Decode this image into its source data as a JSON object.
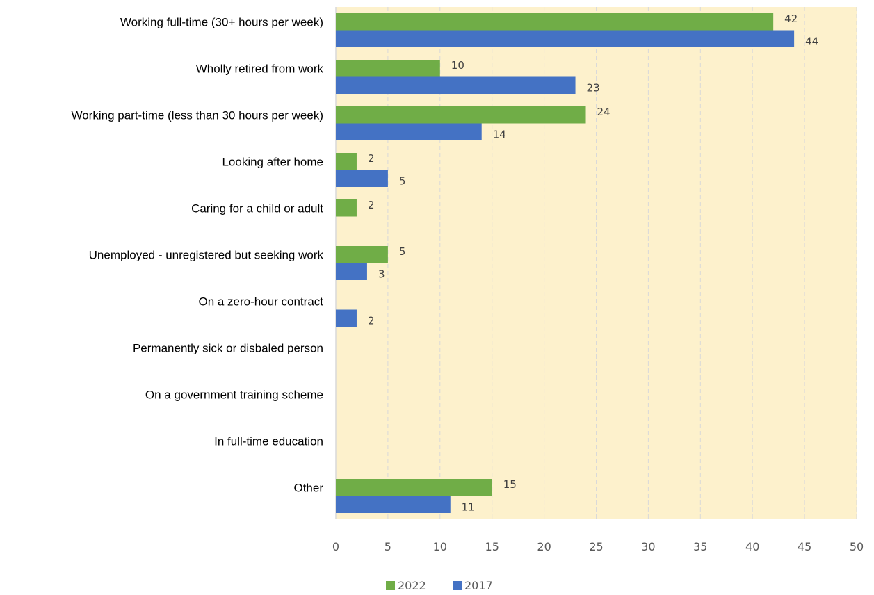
{
  "chart_data": {
    "type": "bar",
    "orientation": "horizontal",
    "categories": [
      "Working full-time (30+ hours per week)",
      "Wholly retired from work",
      "Working part-time (less than 30 hours per week)",
      "Looking after home",
      "Caring for a child or adult",
      "Unemployed - unregistered but seeking work",
      "On a zero-hour contract",
      "Permanently sick or disbaled person",
      "On a government  training scheme",
      "In full-time education",
      "Other"
    ],
    "series": [
      {
        "name": "2022",
        "color": "#70ad47",
        "values": [
          42,
          10,
          24,
          2,
          2,
          5,
          null,
          null,
          null,
          null,
          15
        ]
      },
      {
        "name": "2017",
        "color": "#4472c4",
        "values": [
          44,
          23,
          14,
          5,
          null,
          3,
          2,
          null,
          null,
          null,
          11
        ]
      }
    ],
    "xlim": [
      0,
      50
    ],
    "xticks": [
      "0",
      "5",
      "10",
      "15",
      "20",
      "25",
      "30",
      "35",
      "40",
      "45",
      "50"
    ],
    "grid": "vertical-dashed",
    "plot_background": "#fdf1cc",
    "legend_position": "bottom"
  }
}
